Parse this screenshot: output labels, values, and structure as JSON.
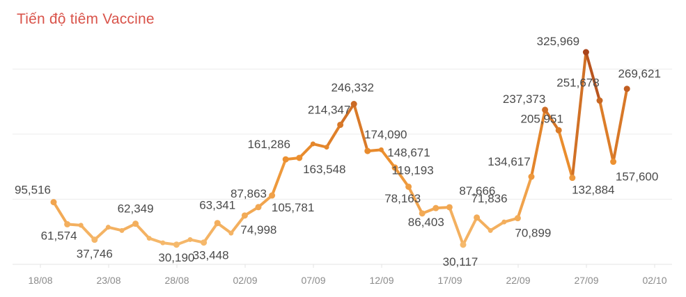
{
  "chart_data": {
    "type": "line",
    "title": "Tiến độ tiêm Vaccine",
    "x_tick_labels": [
      "18/08",
      "23/08",
      "28/08",
      "02/09",
      "07/09",
      "12/09",
      "17/09",
      "22/09",
      "27/09",
      "02/10"
    ],
    "points": [
      {
        "date": "18/08",
        "value": 95516,
        "label": "95,516"
      },
      {
        "date": "19/08",
        "value": 61574,
        "label": "61,574"
      },
      {
        "date": "20/08",
        "value": 60000
      },
      {
        "date": "21/08",
        "value": 37746,
        "label": "37,746"
      },
      {
        "date": "22/08",
        "value": 57000
      },
      {
        "date": "23/08",
        "value": 52000
      },
      {
        "date": "24/08",
        "value": 62349,
        "label": "62,349"
      },
      {
        "date": "25/08",
        "value": 40000
      },
      {
        "date": "26/08",
        "value": 33000
      },
      {
        "date": "27/08",
        "value": 30190,
        "label": "30,190"
      },
      {
        "date": "28/08",
        "value": 38000
      },
      {
        "date": "29/08",
        "value": 33448,
        "label": "33,448"
      },
      {
        "date": "30/08",
        "value": 63341,
        "label": "63,341"
      },
      {
        "date": "31/08",
        "value": 48000
      },
      {
        "date": "01/09",
        "value": 74998,
        "label": "74,998"
      },
      {
        "date": "02/09",
        "value": 87863,
        "label": "87,863"
      },
      {
        "date": "03/09",
        "value": 105781,
        "label": "105,781"
      },
      {
        "date": "04/09",
        "value": 161286,
        "label": "161,286"
      },
      {
        "date": "05/09",
        "value": 163548,
        "label": "163,548"
      },
      {
        "date": "06/09",
        "value": 185000
      },
      {
        "date": "07/09",
        "value": 180000
      },
      {
        "date": "08/09",
        "value": 214347,
        "label": "214,347"
      },
      {
        "date": "09/09",
        "value": 246332,
        "label": "246,332"
      },
      {
        "date": "10/09",
        "value": 174090,
        "label": "174,090"
      },
      {
        "date": "11/09",
        "value": 176000
      },
      {
        "date": "12/09",
        "value": 148671,
        "label": "148,671"
      },
      {
        "date": "13/09",
        "value": 119193,
        "label": "119,193"
      },
      {
        "date": "14/09",
        "value": 78163,
        "label": "78,163"
      },
      {
        "date": "15/09",
        "value": 86403,
        "label": "86,403"
      },
      {
        "date": "16/09",
        "value": 87666,
        "label": "87,666"
      },
      {
        "date": "17/09",
        "value": 30117,
        "label": "30,117"
      },
      {
        "date": "18/09",
        "value": 71836,
        "label": "71,836"
      },
      {
        "date": "19/09",
        "value": 52000
      },
      {
        "date": "20/09",
        "value": 65000
      },
      {
        "date": "21/09",
        "value": 70899,
        "label": "70,899"
      },
      {
        "date": "22/09",
        "value": 134617,
        "label": "134,617"
      },
      {
        "date": "23/09",
        "value": 237373,
        "label": "237,373"
      },
      {
        "date": "24/09",
        "value": 205951,
        "label": "205,951"
      },
      {
        "date": "25/09",
        "value": 132884,
        "label": "132,884"
      },
      {
        "date": "26/09",
        "value": 325969,
        "label": "325,969"
      },
      {
        "date": "27/09",
        "value": 251678,
        "label": "251,678"
      },
      {
        "date": "28/09",
        "value": 157600,
        "label": "157,600"
      },
      {
        "date": "29/09",
        "value": 269621,
        "label": "269,621"
      }
    ],
    "y_range": [
      0,
      350000
    ],
    "y_gridlines": [
      100000,
      200000,
      300000
    ],
    "grid": true,
    "colors": {
      "low": "#f7c27a",
      "mid": "#ec8f2e",
      "high": "#a8421a"
    }
  }
}
